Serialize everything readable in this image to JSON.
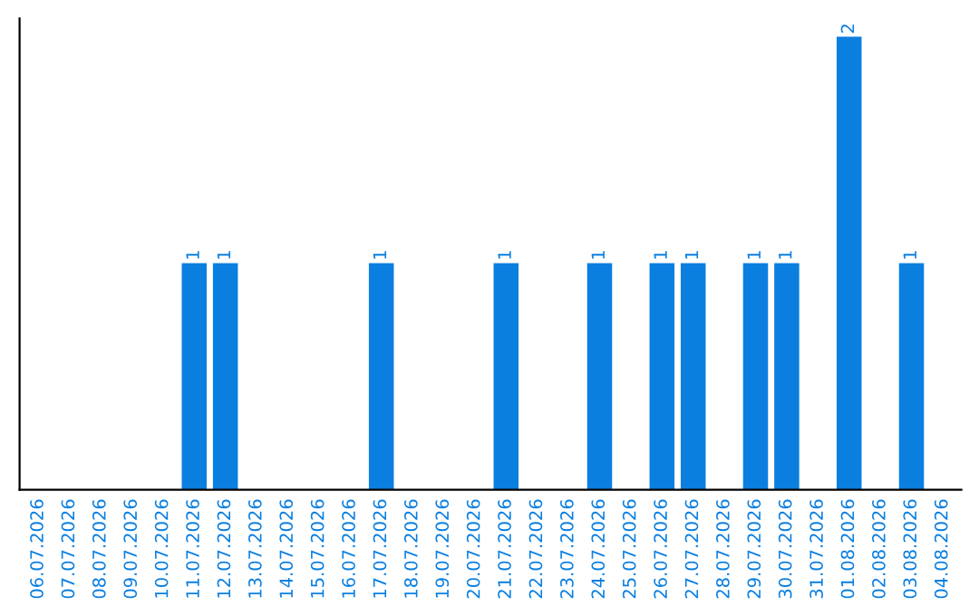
{
  "chart_data": {
    "type": "bar",
    "categories": [
      "06.07.2026",
      "07.07.2026",
      "08.07.2026",
      "09.07.2026",
      "10.07.2026",
      "11.07.2026",
      "12.07.2026",
      "13.07.2026",
      "14.07.2026",
      "15.07.2026",
      "16.07.2026",
      "17.07.2026",
      "18.07.2026",
      "19.07.2026",
      "20.07.2026",
      "21.07.2026",
      "22.07.2026",
      "23.07.2026",
      "24.07.2026",
      "25.07.2026",
      "26.07.2026",
      "27.07.2026",
      "28.07.2026",
      "29.07.2026",
      "30.07.2026",
      "31.07.2026",
      "01.08.2026",
      "02.08.2026",
      "03.08.2026",
      "04.08.2026"
    ],
    "values": [
      0,
      0,
      0,
      0,
      0,
      1,
      1,
      0,
      0,
      0,
      0,
      1,
      0,
      0,
      0,
      1,
      0,
      0,
      1,
      0,
      1,
      1,
      0,
      1,
      1,
      0,
      2,
      0,
      1,
      0
    ],
    "value_labels": [
      null,
      null,
      null,
      null,
      null,
      "1",
      "1",
      null,
      null,
      null,
      null,
      "1",
      null,
      null,
      null,
      "1",
      null,
      null,
      "1",
      null,
      "1",
      "1",
      null,
      "1",
      "1",
      null,
      "2",
      null,
      "1",
      null
    ],
    "color": "#0a7fe0",
    "ylim": [
      0,
      2.08
    ],
    "tick_labels": "x",
    "grid": false,
    "legend": false
  }
}
